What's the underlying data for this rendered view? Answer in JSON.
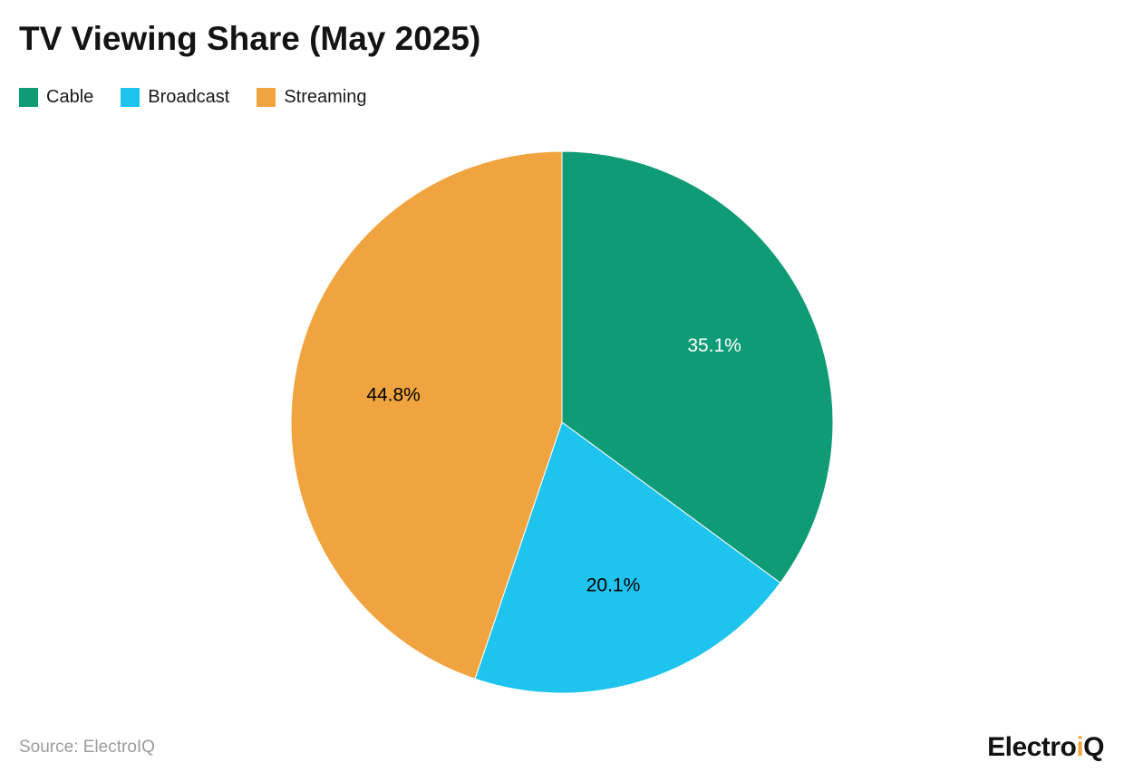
{
  "title": "TV Viewing Share (May 2025)",
  "source": "Source: ElectroIQ",
  "logo": {
    "part1": "Electro",
    "accent": "i",
    "part2": "Q"
  },
  "chart_data": {
    "type": "pie",
    "title": "TV Viewing Share (May 2025)",
    "categories": [
      "Cable",
      "Broadcast",
      "Streaming"
    ],
    "values": [
      35.1,
      20.1,
      44.8
    ],
    "labels": [
      "35.1%",
      "20.1%",
      "44.8%"
    ],
    "colors": [
      "#0f9b76",
      "#1ec3ee",
      "#f0a43f"
    ],
    "label_colors": [
      "#ffffff",
      "#000000",
      "#000000"
    ],
    "start_angle": 0,
    "direction": "clockwise",
    "legend_position": "top-left",
    "source": "ElectroIQ"
  }
}
